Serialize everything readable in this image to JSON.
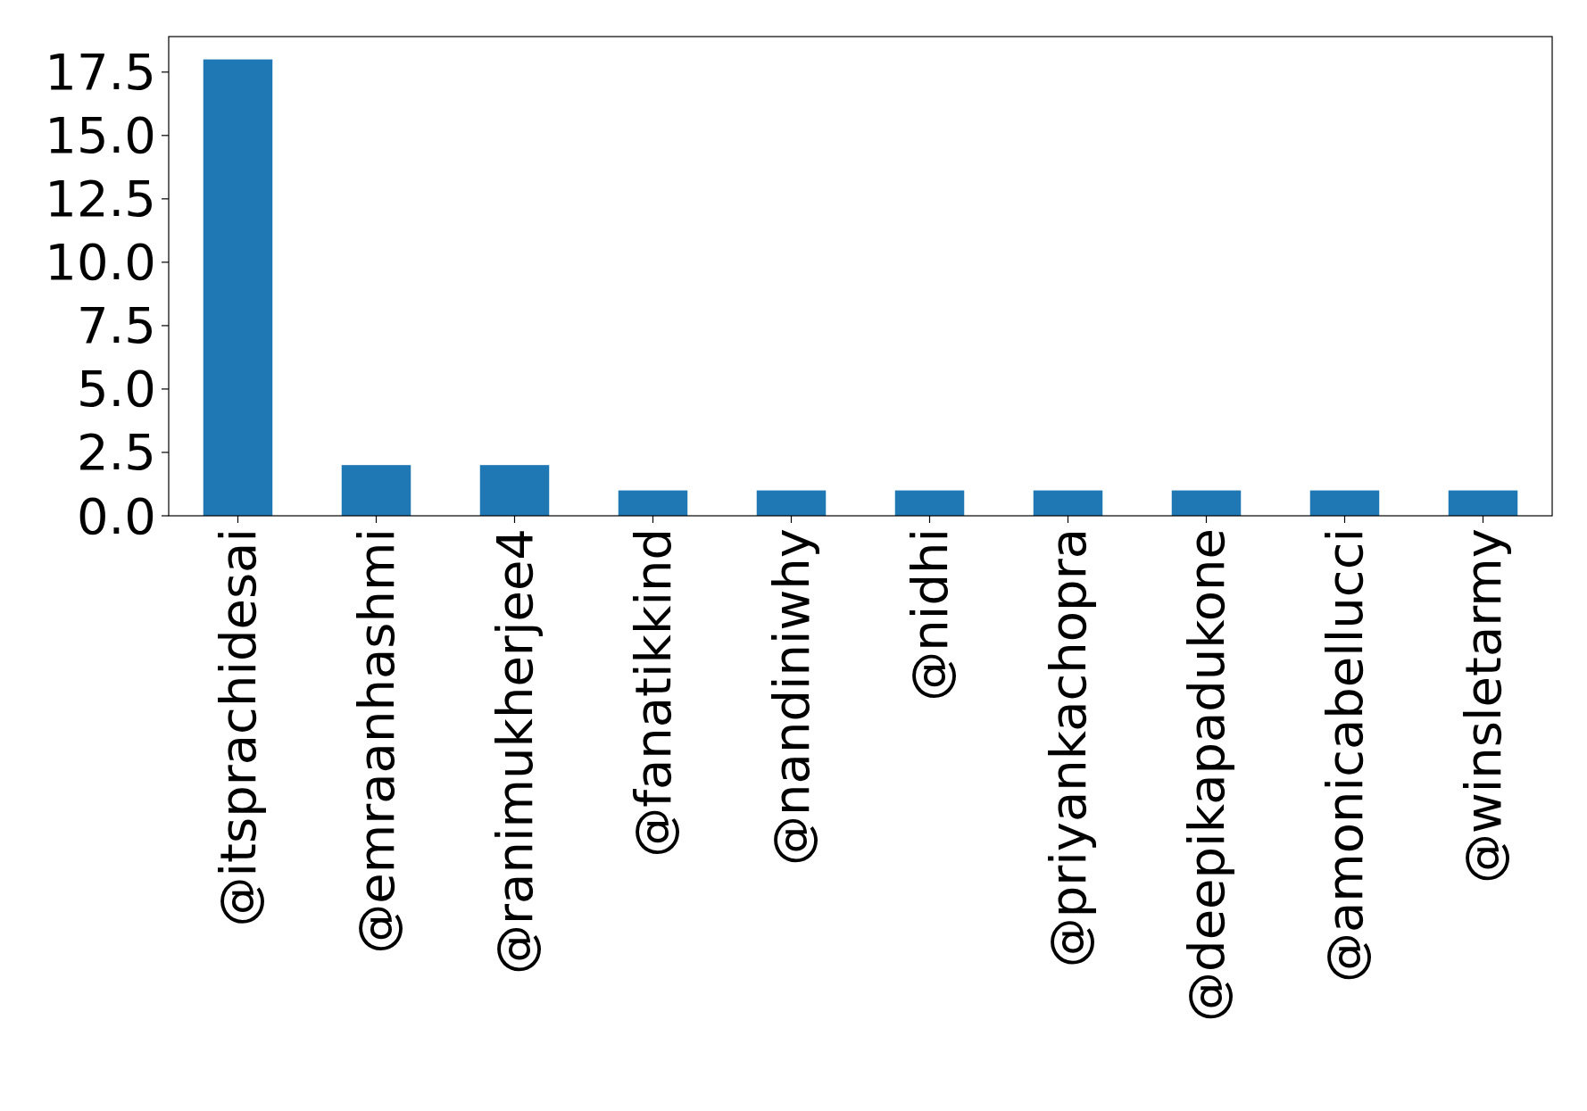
{
  "chart_data": {
    "type": "bar",
    "categories": [
      "@itsprachidesai",
      "@emraanhashmi",
      "@ranimukherjee4",
      "@fanatikkind",
      "@nandiniwhy",
      "@nidhi",
      "@priyankachopra",
      "@deepikapadukone",
      "@amonicabellucci",
      "@winsletarmy"
    ],
    "values": [
      18,
      2,
      2,
      1,
      1,
      1,
      1,
      1,
      1,
      1
    ],
    "color": "#1f77b4",
    "ylim": [
      0,
      18.9
    ],
    "yticks": [
      {
        "value": 0,
        "label": "0.0"
      },
      {
        "value": 2.5,
        "label": "2.5"
      },
      {
        "value": 5,
        "label": "5.0"
      },
      {
        "value": 7.5,
        "label": "7.5"
      },
      {
        "value": 10,
        "label": "10.0"
      },
      {
        "value": 12.5,
        "label": "12.5"
      },
      {
        "value": 15,
        "label": "15.0"
      },
      {
        "value": 17.5,
        "label": "17.5"
      }
    ],
    "grid": false
  }
}
